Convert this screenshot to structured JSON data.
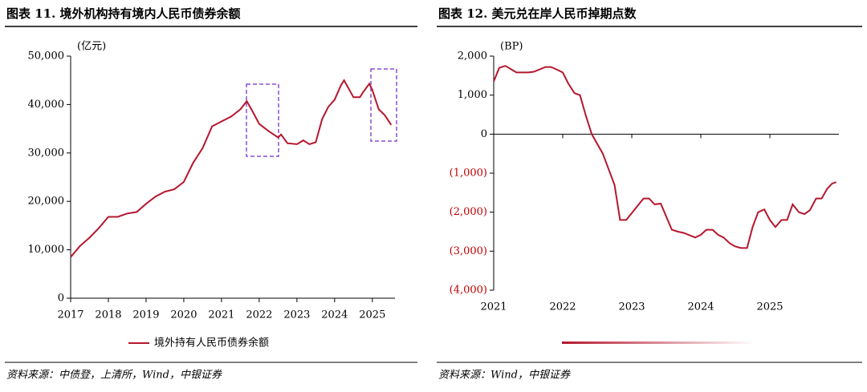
{
  "chart_data": [
    {
      "type": "line",
      "title": "图表 11. 境外机构持有境内人民币债券余额",
      "unit_label": "(亿元)",
      "x": [
        2017.0,
        2017.25,
        2017.5,
        2017.75,
        2018.0,
        2018.25,
        2018.5,
        2018.75,
        2019.0,
        2019.25,
        2019.5,
        2019.75,
        2020.0,
        2020.25,
        2020.5,
        2020.75,
        2021.0,
        2021.25,
        2021.5,
        2021.67,
        2021.83,
        2022.0,
        2022.25,
        2022.5,
        2022.58,
        2022.75,
        2023.0,
        2023.17,
        2023.33,
        2023.5,
        2023.67,
        2023.83,
        2024.0,
        2024.17,
        2024.25,
        2024.5,
        2024.67,
        2024.75,
        2024.92,
        2025.0,
        2025.17,
        2025.33,
        2025.5
      ],
      "series": [
        {
          "name": "境外持有人民币债券余额",
          "color": "#b5172e",
          "values": [
            8500,
            10800,
            12500,
            14500,
            16800,
            16800,
            17500,
            17800,
            19500,
            21000,
            22000,
            22500,
            24000,
            28000,
            31000,
            35500,
            36500,
            37500,
            39000,
            40700,
            38500,
            36000,
            34500,
            33200,
            33800,
            32000,
            31800,
            32600,
            31800,
            32200,
            37000,
            39500,
            41000,
            44000,
            45000,
            41500,
            41500,
            42500,
            44300,
            43000,
            39000,
            37800,
            35800
          ]
        }
      ],
      "xlim": [
        2017,
        2025.6
      ],
      "xticks": [
        2017,
        2018,
        2019,
        2020,
        2021,
        2022,
        2023,
        2024,
        2025
      ],
      "ylim": [
        0,
        50000
      ],
      "yticks": [
        0,
        {
          "value": 10000,
          "label": "10,000"
        },
        {
          "value": 20000,
          "label": "20,000"
        },
        {
          "value": 30000,
          "label": "30,000"
        },
        {
          "value": 40000,
          "label": "40,000"
        },
        {
          "value": 50000,
          "label": "50,000"
        }
      ],
      "source": "资料来源：中债登，上清所，Wind，中银证券"
    },
    {
      "type": "line",
      "title": "图表 12. 美元兑在岸人民币掉期点数",
      "unit_label": "(BP)",
      "x": [
        2021.0,
        2021.08,
        2021.17,
        2021.33,
        2021.5,
        2021.58,
        2021.75,
        2021.83,
        2021.92,
        2022.0,
        2022.08,
        2022.17,
        2022.25,
        2022.33,
        2022.42,
        2022.58,
        2022.75,
        2022.83,
        2022.92,
        2023.17,
        2023.25,
        2023.33,
        2023.42,
        2023.58,
        2023.67,
        2023.75,
        2023.92,
        2024.0,
        2024.08,
        2024.17,
        2024.25,
        2024.33,
        2024.42,
        2024.5,
        2024.58,
        2024.67,
        2024.75,
        2024.83,
        2024.92,
        2025.0,
        2025.08,
        2025.17,
        2025.25,
        2025.33,
        2025.42,
        2025.5,
        2025.58,
        2025.67,
        2025.75,
        2025.83,
        2025.9,
        2025.96
      ],
      "series": [
        {
          "color": "#b5172e",
          "values": [
            1350,
            1700,
            1750,
            1580,
            1580,
            1600,
            1720,
            1720,
            1650,
            1580,
            1300,
            1050,
            1000,
            500,
            0,
            -500,
            -1300,
            -2200,
            -2200,
            -1650,
            -1650,
            -1800,
            -1780,
            -2450,
            -2500,
            -2530,
            -2650,
            -2580,
            -2450,
            -2450,
            -2580,
            -2650,
            -2800,
            -2880,
            -2920,
            -2920,
            -2380,
            -2000,
            -1930,
            -2200,
            -2380,
            -2200,
            -2200,
            -1800,
            -2000,
            -2050,
            -1950,
            -1650,
            -1650,
            -1400,
            -1270,
            -1230
          ]
        }
      ],
      "xlim": [
        2021,
        2026
      ],
      "xticks": [
        2021,
        2022,
        2023,
        2024,
        2025
      ],
      "ylim": [
        -4000,
        2000
      ],
      "yticks": [
        {
          "value": -4000,
          "label": "(4,000)"
        },
        {
          "value": -3000,
          "label": "(3,000)"
        },
        {
          "value": -2000,
          "label": "(2,000)"
        },
        {
          "value": -1000,
          "label": "(1,000)"
        },
        0,
        {
          "value": 1000,
          "label": "1,000"
        },
        {
          "value": 2000,
          "label": "2,000"
        }
      ],
      "source": "资料来源：Wind，中银证券"
    }
  ]
}
